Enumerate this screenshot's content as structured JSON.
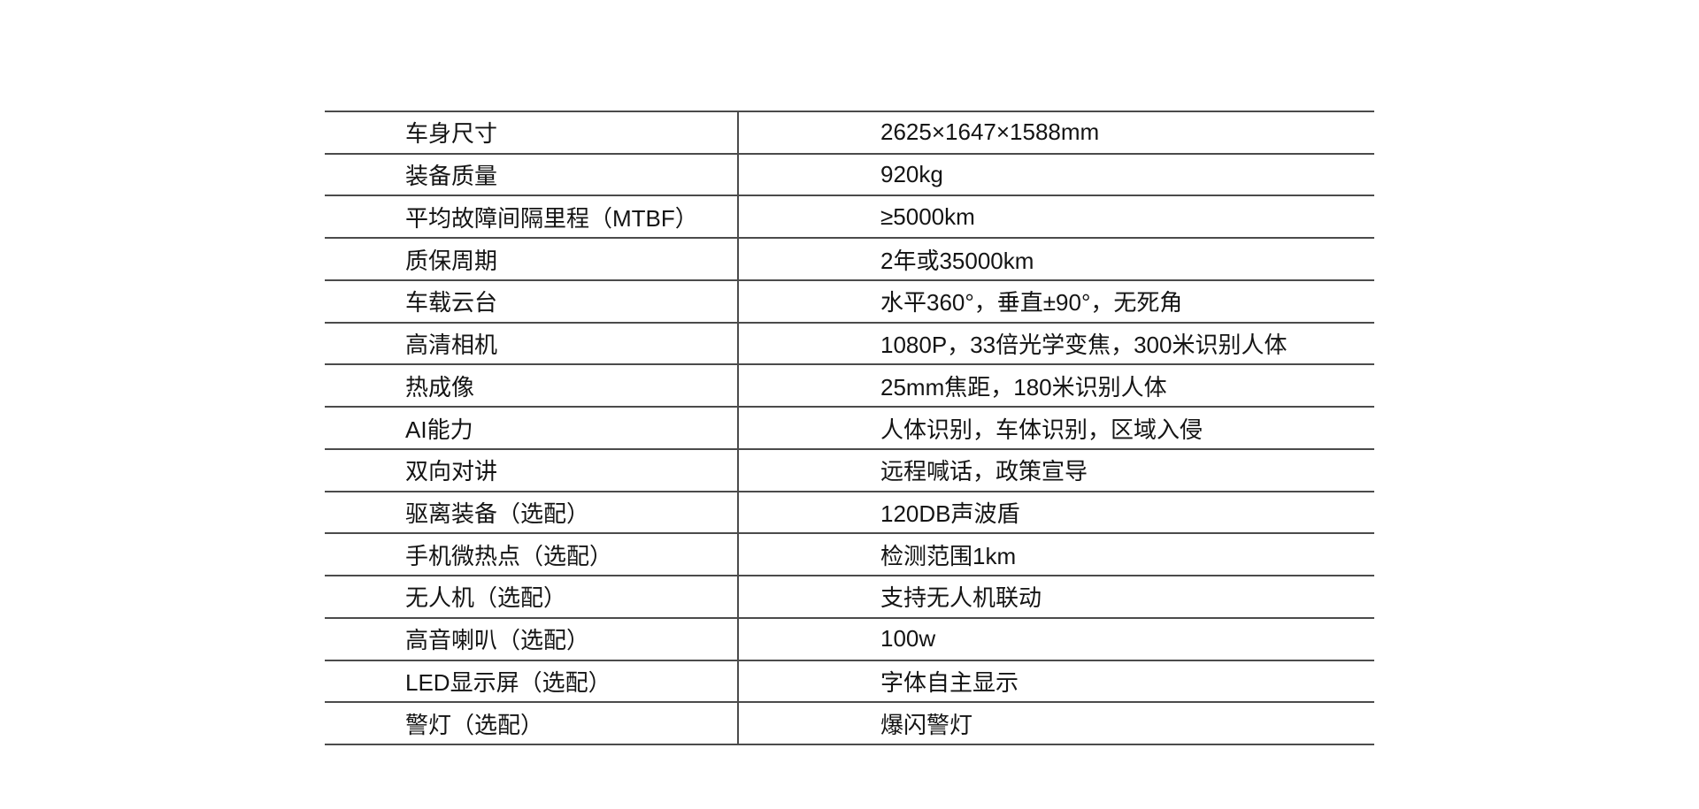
{
  "page": {
    "background_color": "#ffffff",
    "text_color": "#141414",
    "line_color": "#4b4b4b"
  },
  "spec_table": {
    "rows": [
      {
        "label": "车身尺寸",
        "value": "2625×1647×1588mm"
      },
      {
        "label": "装备质量",
        "value": "920kg"
      },
      {
        "label": "平均故障间隔里程（MTBF）",
        "value": "≥5000km"
      },
      {
        "label": "质保周期",
        "value": "2年或35000km"
      },
      {
        "label": "车载云台",
        "value": "水平360°，垂直±90°，无死角"
      },
      {
        "label": "高清相机",
        "value": "1080P，33倍光学变焦，300米识别人体"
      },
      {
        "label": "热成像",
        "value": "25mm焦距，180米识别人体"
      },
      {
        "label": "AI能力",
        "value": "人体识别，车体识别，区域入侵"
      },
      {
        "label": "双向对讲",
        "value": "远程喊话，政策宣导"
      },
      {
        "label": "驱离装备（选配）",
        "value": "120DB声波盾"
      },
      {
        "label": "手机微热点（选配）",
        "value": "检测范围1km"
      },
      {
        "label": "无人机（选配）",
        "value": "支持无人机联动"
      },
      {
        "label": "高音喇叭（选配）",
        "value": "100w"
      },
      {
        "label": "LED显示屏（选配）",
        "value": "字体自主显示"
      },
      {
        "label": "警灯（选配）",
        "value": "爆闪警灯"
      }
    ]
  }
}
